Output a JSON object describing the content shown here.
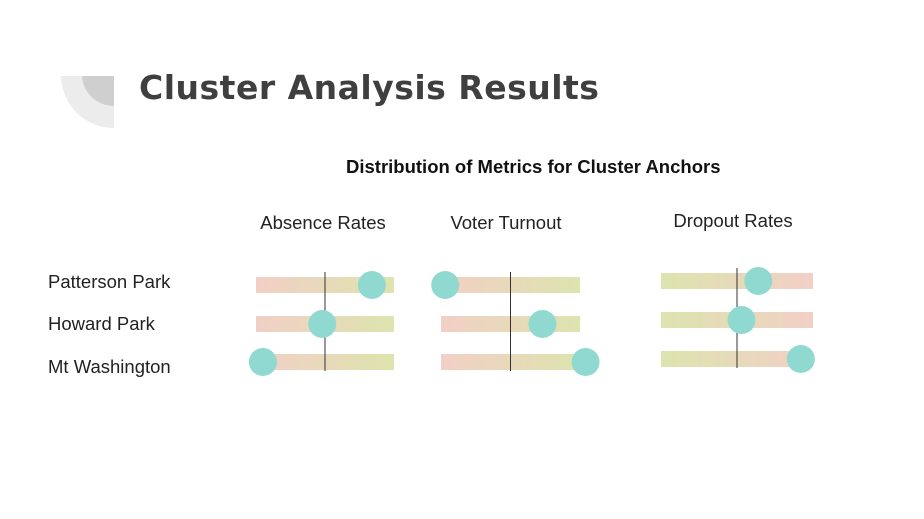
{
  "slide": {
    "title": "Cluster Analysis Results"
  },
  "colors": {
    "low": "#f2cfc6",
    "high": "#dde4ae",
    "dot": "#8fd9d1",
    "median_line": "#333333",
    "title_text": "#3f3f3f",
    "deco_light": "#ececec",
    "deco_dark": "#cfcfcf"
  },
  "chart_data": {
    "type": "scatter",
    "title": "Distribution of Metrics for Cluster Anchors",
    "categories": [
      "Patterson Park",
      "Howard Park",
      "Mt Washington"
    ],
    "grid": false,
    "legend": "none",
    "panels": [
      {
        "name": "Absence Rates",
        "gradient": "low-to-high",
        "median": 0.5,
        "values": [
          0.84,
          0.48,
          0.05
        ]
      },
      {
        "name": "Voter Turnout",
        "gradient": "low-to-high",
        "median": 0.5,
        "values": [
          0.03,
          0.73,
          1.04
        ]
      },
      {
        "name": "Dropout Rates",
        "gradient": "high-to-low",
        "median": 0.5,
        "values": [
          0.64,
          0.53,
          0.92
        ]
      }
    ]
  }
}
